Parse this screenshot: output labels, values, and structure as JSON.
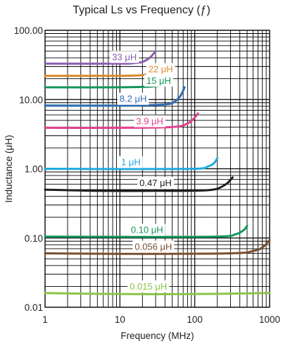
{
  "chart_data": {
    "type": "line",
    "title": "Typical Ls vs Frequency (ƒ)",
    "xlabel": "Frequency (MHz)",
    "ylabel": "Inductance (μH)",
    "xscale": "log",
    "yscale": "log",
    "xlim": [
      1,
      1000
    ],
    "ylim": [
      0.01,
      100
    ],
    "grid": true,
    "xticks": [
      "1",
      "10",
      "100",
      "1000"
    ],
    "yticks": [
      "0.01",
      "0.10",
      "1.00",
      "10.00",
      "100.00"
    ],
    "series": [
      {
        "name": "33 μH",
        "color": "#8a5fb0",
        "points": [
          [
            1,
            33
          ],
          [
            10,
            33
          ],
          [
            15,
            33.5
          ],
          [
            20,
            35
          ],
          [
            25,
            40
          ],
          [
            30,
            50
          ]
        ]
      },
      {
        "name": "22 μH",
        "color": "#d98a2e",
        "points": [
          [
            1,
            22
          ],
          [
            10,
            22
          ],
          [
            20,
            22.5
          ],
          [
            25,
            24
          ],
          [
            30,
            27
          ],
          [
            33,
            31
          ]
        ]
      },
      {
        "name": "15 μH",
        "color": "#13965a",
        "points": [
          [
            1,
            15
          ],
          [
            10,
            15
          ],
          [
            30,
            15.6
          ],
          [
            40,
            18
          ],
          [
            50,
            26
          ]
        ]
      },
      {
        "name": "8.2 μH",
        "color": "#2f6db2",
        "points": [
          [
            1,
            8.2
          ],
          [
            10,
            8.2
          ],
          [
            40,
            8.5
          ],
          [
            55,
            9.5
          ],
          [
            65,
            11.5
          ],
          [
            73,
            15
          ]
        ]
      },
      {
        "name": "3.9 μH",
        "color": "#e2418e",
        "points": [
          [
            1,
            3.9
          ],
          [
            10,
            3.9
          ],
          [
            50,
            4.0
          ],
          [
            80,
            4.5
          ],
          [
            100,
            5.5
          ],
          [
            110,
            6.3
          ]
        ]
      },
      {
        "name": "1 μH",
        "color": "#20a9e0",
        "points": [
          [
            1,
            1.0
          ],
          [
            10,
            0.99
          ],
          [
            100,
            1.0
          ],
          [
            150,
            1.08
          ],
          [
            180,
            1.2
          ],
          [
            200,
            1.42
          ]
        ]
      },
      {
        "name": "0.47 μH",
        "color": "#1e1e1e",
        "points": [
          [
            1,
            0.5
          ],
          [
            5,
            0.48
          ],
          [
            30,
            0.48
          ],
          [
            150,
            0.49
          ],
          [
            250,
            0.58
          ],
          [
            320,
            0.75
          ]
        ]
      },
      {
        "name": "0.10 μH",
        "color": "#13965a",
        "points": [
          [
            1,
            0.105
          ],
          [
            10,
            0.104
          ],
          [
            200,
            0.105
          ],
          [
            350,
            0.113
          ],
          [
            450,
            0.13
          ],
          [
            500,
            0.15
          ]
        ]
      },
      {
        "name": "0.056 μH",
        "color": "#7a5030",
        "points": [
          [
            1,
            0.06
          ],
          [
            10,
            0.059
          ],
          [
            300,
            0.06
          ],
          [
            600,
            0.065
          ],
          [
            800,
            0.073
          ],
          [
            1000,
            0.093
          ]
        ]
      },
      {
        "name": "0.015 μH",
        "color": "#8bc34a",
        "points": [
          [
            1,
            0.016
          ],
          [
            10,
            0.0155
          ],
          [
            100,
            0.0155
          ],
          [
            1000,
            0.016
          ]
        ]
      }
    ]
  }
}
